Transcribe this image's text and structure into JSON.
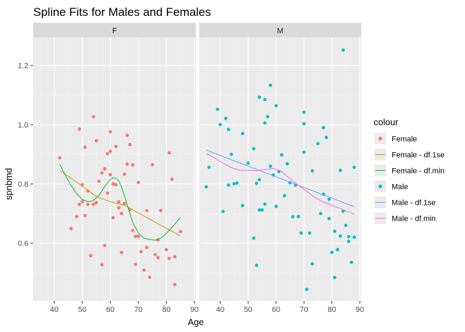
{
  "chart_data": {
    "type": "scatter",
    "title": "Spline Fits for Males and Females",
    "xlabel": "Age",
    "ylabel": "spnbmd",
    "xlim": [
      32.5,
      90.5
    ],
    "ylim": [
      0.405,
      1.295
    ],
    "x_ticks": [
      40,
      50,
      60,
      70,
      80,
      90
    ],
    "y_ticks": [
      0.6,
      0.8,
      1.0,
      1.2
    ],
    "x_tick_labels": [
      "40",
      "50",
      "60",
      "70",
      "80",
      "90"
    ],
    "y_tick_labels": [
      "0.6",
      "0.8",
      "1.0",
      "1.2"
    ],
    "grid": true,
    "legend_position": "right",
    "legend": {
      "title": "colour",
      "entries": [
        {
          "label": "Female",
          "kind": "point",
          "color": "#F8766D"
        },
        {
          "label": "Female - df.1se",
          "kind": "line",
          "color": "#C49A00"
        },
        {
          "label": "Female - df.min",
          "kind": "line",
          "color": "#00B62A"
        },
        {
          "label": "Male",
          "kind": "point",
          "color": "#00BFC4"
        },
        {
          "label": "Male - df.1se",
          "kind": "line",
          "color": "#619CFF"
        },
        {
          "label": "Male - df.min",
          "kind": "line",
          "color": "#F564E3"
        }
      ]
    },
    "panels": [
      {
        "strip": "F",
        "points": {
          "name": "Female",
          "color": "#F8766D",
          "x": [
            42,
            46,
            48,
            49,
            49,
            50,
            50,
            51,
            51,
            52,
            52,
            53,
            54,
            54,
            55,
            55,
            56,
            57,
            57,
            58,
            58,
            59,
            59,
            60,
            60,
            60,
            61,
            61,
            61,
            62,
            62,
            63,
            63,
            64,
            64,
            65,
            65,
            66,
            66,
            67,
            67,
            68,
            68,
            69,
            69,
            70,
            70,
            71,
            72,
            73,
            73,
            74,
            75,
            76,
            77,
            77,
            78,
            80,
            81,
            81,
            82,
            83,
            83,
            85
          ],
          "y": [
            0.888,
            0.649,
            0.69,
            0.731,
            0.985,
            0.74,
            0.797,
            0.924,
            0.693,
            0.731,
            0.776,
            0.558,
            0.731,
            1.027,
            0.737,
            0.946,
            0.809,
            0.527,
            0.837,
            0.851,
            0.592,
            0.769,
            0.902,
            0.831,
            0.976,
            0.91,
            0.8,
            0.686,
            0.8,
            0.797,
            0.926,
            0.74,
            0.719,
            0.7,
            0.568,
            0.833,
            0.734,
            0.867,
            0.964,
            0.933,
            0.714,
            0.642,
            0.864,
            0.623,
            0.528,
            0.623,
            0.805,
            0.571,
            0.509,
            0.71,
            0.586,
            0.485,
            0.865,
            0.561,
            0.611,
            0.551,
            0.71,
            0.578,
            0.548,
            0.905,
            0.816,
            0.554,
            0.46,
            0.639
          ]
        },
        "lines": [
          {
            "name": "Female - df.1se",
            "color": "#C49A00",
            "x": [
              42,
              50,
              55,
              60,
              65,
              70,
              75,
              80,
              85
            ],
            "y": [
              0.845,
              0.793,
              0.757,
              0.74,
              0.728,
              0.702,
              0.676,
              0.65,
              0.624
            ]
          },
          {
            "name": "Female - df.min",
            "color": "#00B62A",
            "x": [
              42,
              44,
              46,
              48,
              50,
              52,
              54,
              56,
              58,
              60,
              61,
              62,
              63,
              64,
              65,
              66,
              68,
              70,
              72,
              74,
              76,
              78,
              80,
              82,
              84,
              85
            ],
            "y": [
              0.866,
              0.828,
              0.794,
              0.767,
              0.748,
              0.74,
              0.744,
              0.762,
              0.791,
              0.815,
              0.82,
              0.82,
              0.81,
              0.79,
              0.762,
              0.73,
              0.67,
              0.634,
              0.617,
              0.612,
              0.61,
              0.617,
              0.633,
              0.653,
              0.676,
              0.686
            ]
          }
        ]
      },
      {
        "strip": "M",
        "points": {
          "name": "Male",
          "color": "#00BFC4",
          "x": [
            35,
            36,
            39,
            40,
            41,
            42,
            43,
            43,
            44,
            45,
            46,
            48,
            48,
            50,
            52,
            52,
            53,
            53,
            54,
            54,
            54,
            55,
            56,
            56,
            56,
            57,
            58,
            58,
            59,
            60,
            60,
            61,
            62,
            63,
            64,
            65,
            66,
            67,
            68,
            69,
            70,
            70,
            70,
            71,
            72,
            73,
            73,
            75,
            76,
            77,
            77,
            78,
            79,
            79,
            80,
            81,
            81,
            82,
            83,
            83,
            84,
            84,
            85,
            86,
            86,
            87,
            88,
            88
          ],
          "y": [
            0.79,
            0.856,
            1.052,
            1.0,
            0.707,
            1.021,
            0.984,
            0.796,
            0.9,
            0.801,
            0.803,
            0.727,
            0.97,
            0.87,
            0.617,
            0.919,
            0.525,
            0.802,
            0.712,
            0.814,
            1.093,
            0.712,
            1.006,
            1.085,
            0.732,
            1.027,
            1.133,
            0.86,
            0.83,
            0.724,
            1.064,
            0.842,
            0.898,
            0.76,
            0.868,
            0.804,
            0.689,
            0.796,
            0.69,
            0.634,
            0.907,
            1.003,
            1.042,
            0.444,
            0.634,
            0.53,
            0.844,
            0.936,
            0.7,
            0.99,
            0.765,
            0.957,
            0.683,
            0.748,
            0.569,
            0.64,
            0.484,
            0.578,
            0.624,
            0.846,
            1.252,
            0.708,
            0.66,
            0.622,
            0.606,
            0.535,
            0.62,
            0.856
          ]
        },
        "lines": [
          {
            "name": "Male - df.1se",
            "color": "#619CFF",
            "x": [
              35,
              40,
              45,
              50,
              55,
              60,
              65,
              70,
              75,
              80,
              85,
              88
            ],
            "y": [
              0.915,
              0.896,
              0.878,
              0.86,
              0.842,
              0.824,
              0.806,
              0.788,
              0.77,
              0.752,
              0.734,
              0.723
            ]
          },
          {
            "name": "Male - df.min",
            "color": "#F564E3",
            "x": [
              35,
              38,
              41,
              44,
              47,
              50,
              53,
              56,
              59,
              62,
              65,
              68,
              71,
              74,
              77,
              80,
              83,
              86,
              88
            ],
            "y": [
              0.902,
              0.887,
              0.87,
              0.855,
              0.846,
              0.846,
              0.845,
              0.848,
              0.852,
              0.842,
              0.818,
              0.795,
              0.775,
              0.754,
              0.739,
              0.728,
              0.717,
              0.705,
              0.698
            ]
          }
        ]
      }
    ]
  }
}
